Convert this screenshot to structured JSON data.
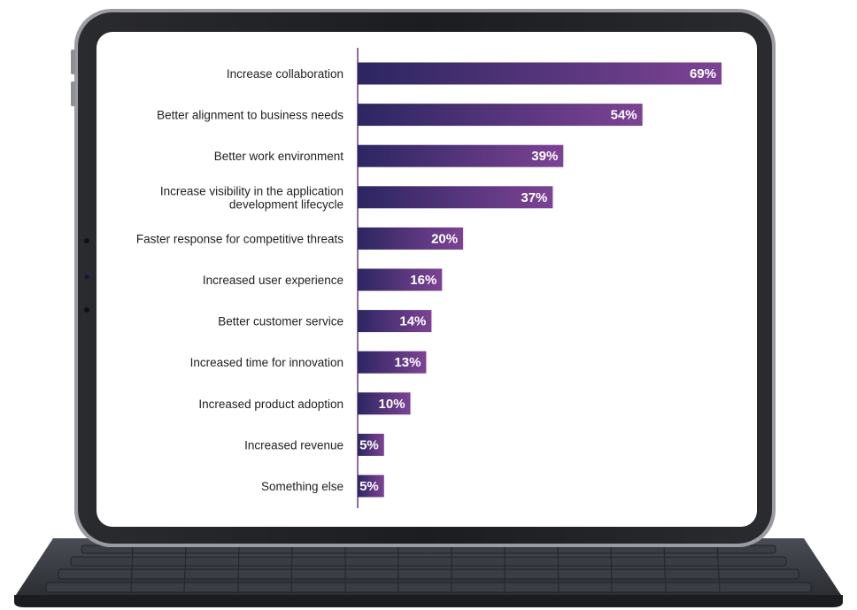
{
  "chart_data": {
    "type": "bar",
    "orientation": "horizontal",
    "title": "",
    "xlabel": "",
    "ylabel": "",
    "xlim": [
      0,
      69
    ],
    "grid": false,
    "categories": [
      "Increase collaboration",
      "Better alignment to business needs",
      "Better work environment",
      "Increase visibility in the application\ndevelopment lifecycle",
      "Faster response for competitive threats",
      "Increased user experience",
      "Better customer service",
      "Increased time for innovation",
      "Increased product adoption",
      "Increased revenue",
      "Something else"
    ],
    "values": [
      69,
      54,
      39,
      37,
      20,
      16,
      14,
      13,
      10,
      5,
      5
    ],
    "value_labels": [
      "69%",
      "54%",
      "39%",
      "37%",
      "20%",
      "16%",
      "14%",
      "13%",
      "10%",
      "5%",
      "5%"
    ],
    "colors": {
      "bar_start": "#2c2661",
      "bar_end": "#7d4394",
      "axis": "#6b3b86",
      "label_text": "#1f1f1f",
      "value_text": "#ffffff"
    }
  }
}
